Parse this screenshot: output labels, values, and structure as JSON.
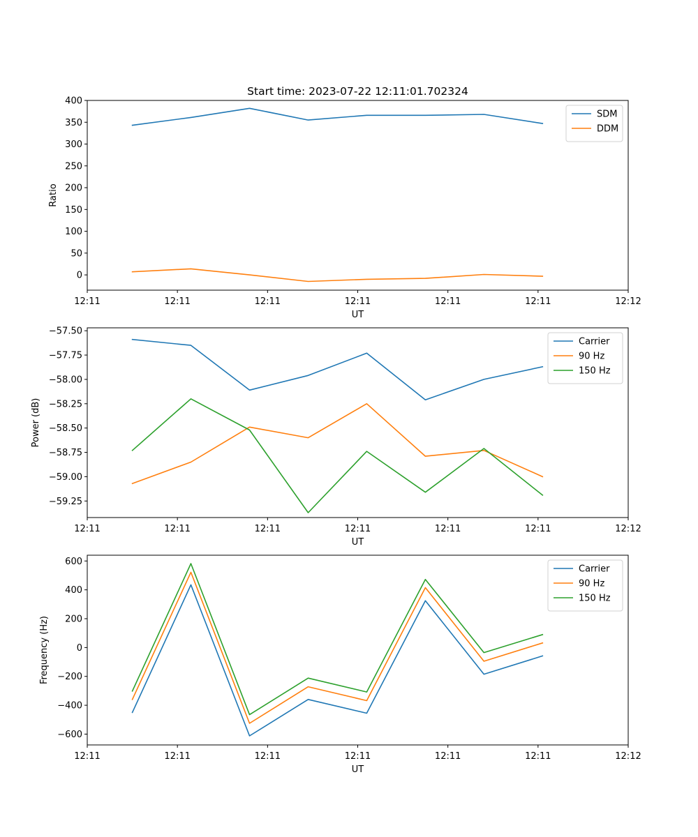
{
  "colors": {
    "blue": "#1f77b4",
    "orange": "#ff7f0e",
    "green": "#2ca02c"
  },
  "chart_data": [
    {
      "type": "line",
      "title": "Start time: 2023-07-22 12:11:01.702324",
      "xlabel": "UT",
      "ylabel": "Ratio",
      "x": [
        0.5,
        1.15,
        1.8,
        2.45,
        3.1,
        3.75,
        4.4,
        5.05
      ],
      "xlim": [
        0,
        6.0
      ],
      "xticks": [
        0,
        1,
        2,
        3,
        4,
        5,
        6
      ],
      "xtick_labels": [
        "12:11",
        "12:11",
        "12:11",
        "12:11",
        "12:11",
        "12:11",
        "12:12"
      ],
      "ylim": [
        -35,
        400
      ],
      "yticks": [
        0,
        50,
        100,
        150,
        200,
        250,
        300,
        350,
        400
      ],
      "ytick_labels": [
        "0",
        "50",
        "100",
        "150",
        "200",
        "250",
        "300",
        "350",
        "400"
      ],
      "legend": "top-right",
      "series": [
        {
          "name": "SDM",
          "color": "#1f77b4",
          "values": [
            343,
            361,
            382,
            355,
            366,
            366,
            368,
            347
          ]
        },
        {
          "name": "DDM",
          "color": "#ff7f0e",
          "values": [
            7,
            14,
            0,
            -15,
            -10,
            -8,
            1,
            -3
          ]
        }
      ]
    },
    {
      "type": "line",
      "title": "",
      "xlabel": "UT",
      "ylabel": "Power (dB)",
      "x": [
        0.5,
        1.15,
        1.8,
        2.45,
        3.1,
        3.75,
        4.4,
        5.05
      ],
      "xlim": [
        0,
        6.0
      ],
      "xticks": [
        0,
        1,
        2,
        3,
        4,
        5,
        6
      ],
      "xtick_labels": [
        "12:11",
        "12:11",
        "12:11",
        "12:11",
        "12:11",
        "12:11",
        "12:12"
      ],
      "ylim": [
        -59.42,
        -57.47
      ],
      "yticks": [
        -59.25,
        -59.0,
        -58.75,
        -58.5,
        -58.25,
        -58.0,
        -57.75,
        -57.5
      ],
      "ytick_labels": [
        "−59.25",
        "−59.00",
        "−58.75",
        "−58.50",
        "−58.25",
        "−58.00",
        "−57.75",
        "−57.50"
      ],
      "legend": "top-right",
      "series": [
        {
          "name": "Carrier",
          "color": "#1f77b4",
          "values": [
            -57.59,
            -57.65,
            -58.11,
            -57.96,
            -57.73,
            -58.21,
            -58.0,
            -57.87
          ]
        },
        {
          "name": "90 Hz",
          "color": "#ff7f0e",
          "values": [
            -59.07,
            -58.85,
            -58.49,
            -58.6,
            -58.25,
            -58.79,
            -58.73,
            -59.0
          ]
        },
        {
          "name": "150 Hz",
          "color": "#2ca02c",
          "values": [
            -58.73,
            -58.2,
            -58.52,
            -59.37,
            -58.74,
            -59.16,
            -58.71,
            -59.19
          ]
        }
      ]
    },
    {
      "type": "line",
      "title": "",
      "xlabel": "UT",
      "ylabel": "Frequency (Hz)",
      "x": [
        0.5,
        1.15,
        1.8,
        2.45,
        3.1,
        3.75,
        4.4,
        5.05
      ],
      "xlim": [
        0,
        6.0
      ],
      "xticks": [
        0,
        1,
        2,
        3,
        4,
        5,
        6
      ],
      "xtick_labels": [
        "12:11",
        "12:11",
        "12:11",
        "12:11",
        "12:11",
        "12:11",
        "12:12"
      ],
      "ylim": [
        -675,
        640
      ],
      "yticks": [
        -600,
        -400,
        -200,
        0,
        200,
        400,
        600
      ],
      "ytick_labels": [
        "−600",
        "−400",
        "−200",
        "0",
        "200",
        "400",
        "600"
      ],
      "legend": "top-right",
      "series": [
        {
          "name": "Carrier",
          "color": "#1f77b4",
          "values": [
            -450,
            435,
            -612,
            -360,
            -455,
            325,
            -185,
            -58
          ]
        },
        {
          "name": "90 Hz",
          "color": "#ff7f0e",
          "values": [
            -360,
            522,
            -525,
            -272,
            -368,
            415,
            -95,
            32
          ]
        },
        {
          "name": "150 Hz",
          "color": "#2ca02c",
          "values": [
            -302,
            582,
            -465,
            -212,
            -308,
            472,
            -35,
            90
          ]
        }
      ]
    }
  ]
}
